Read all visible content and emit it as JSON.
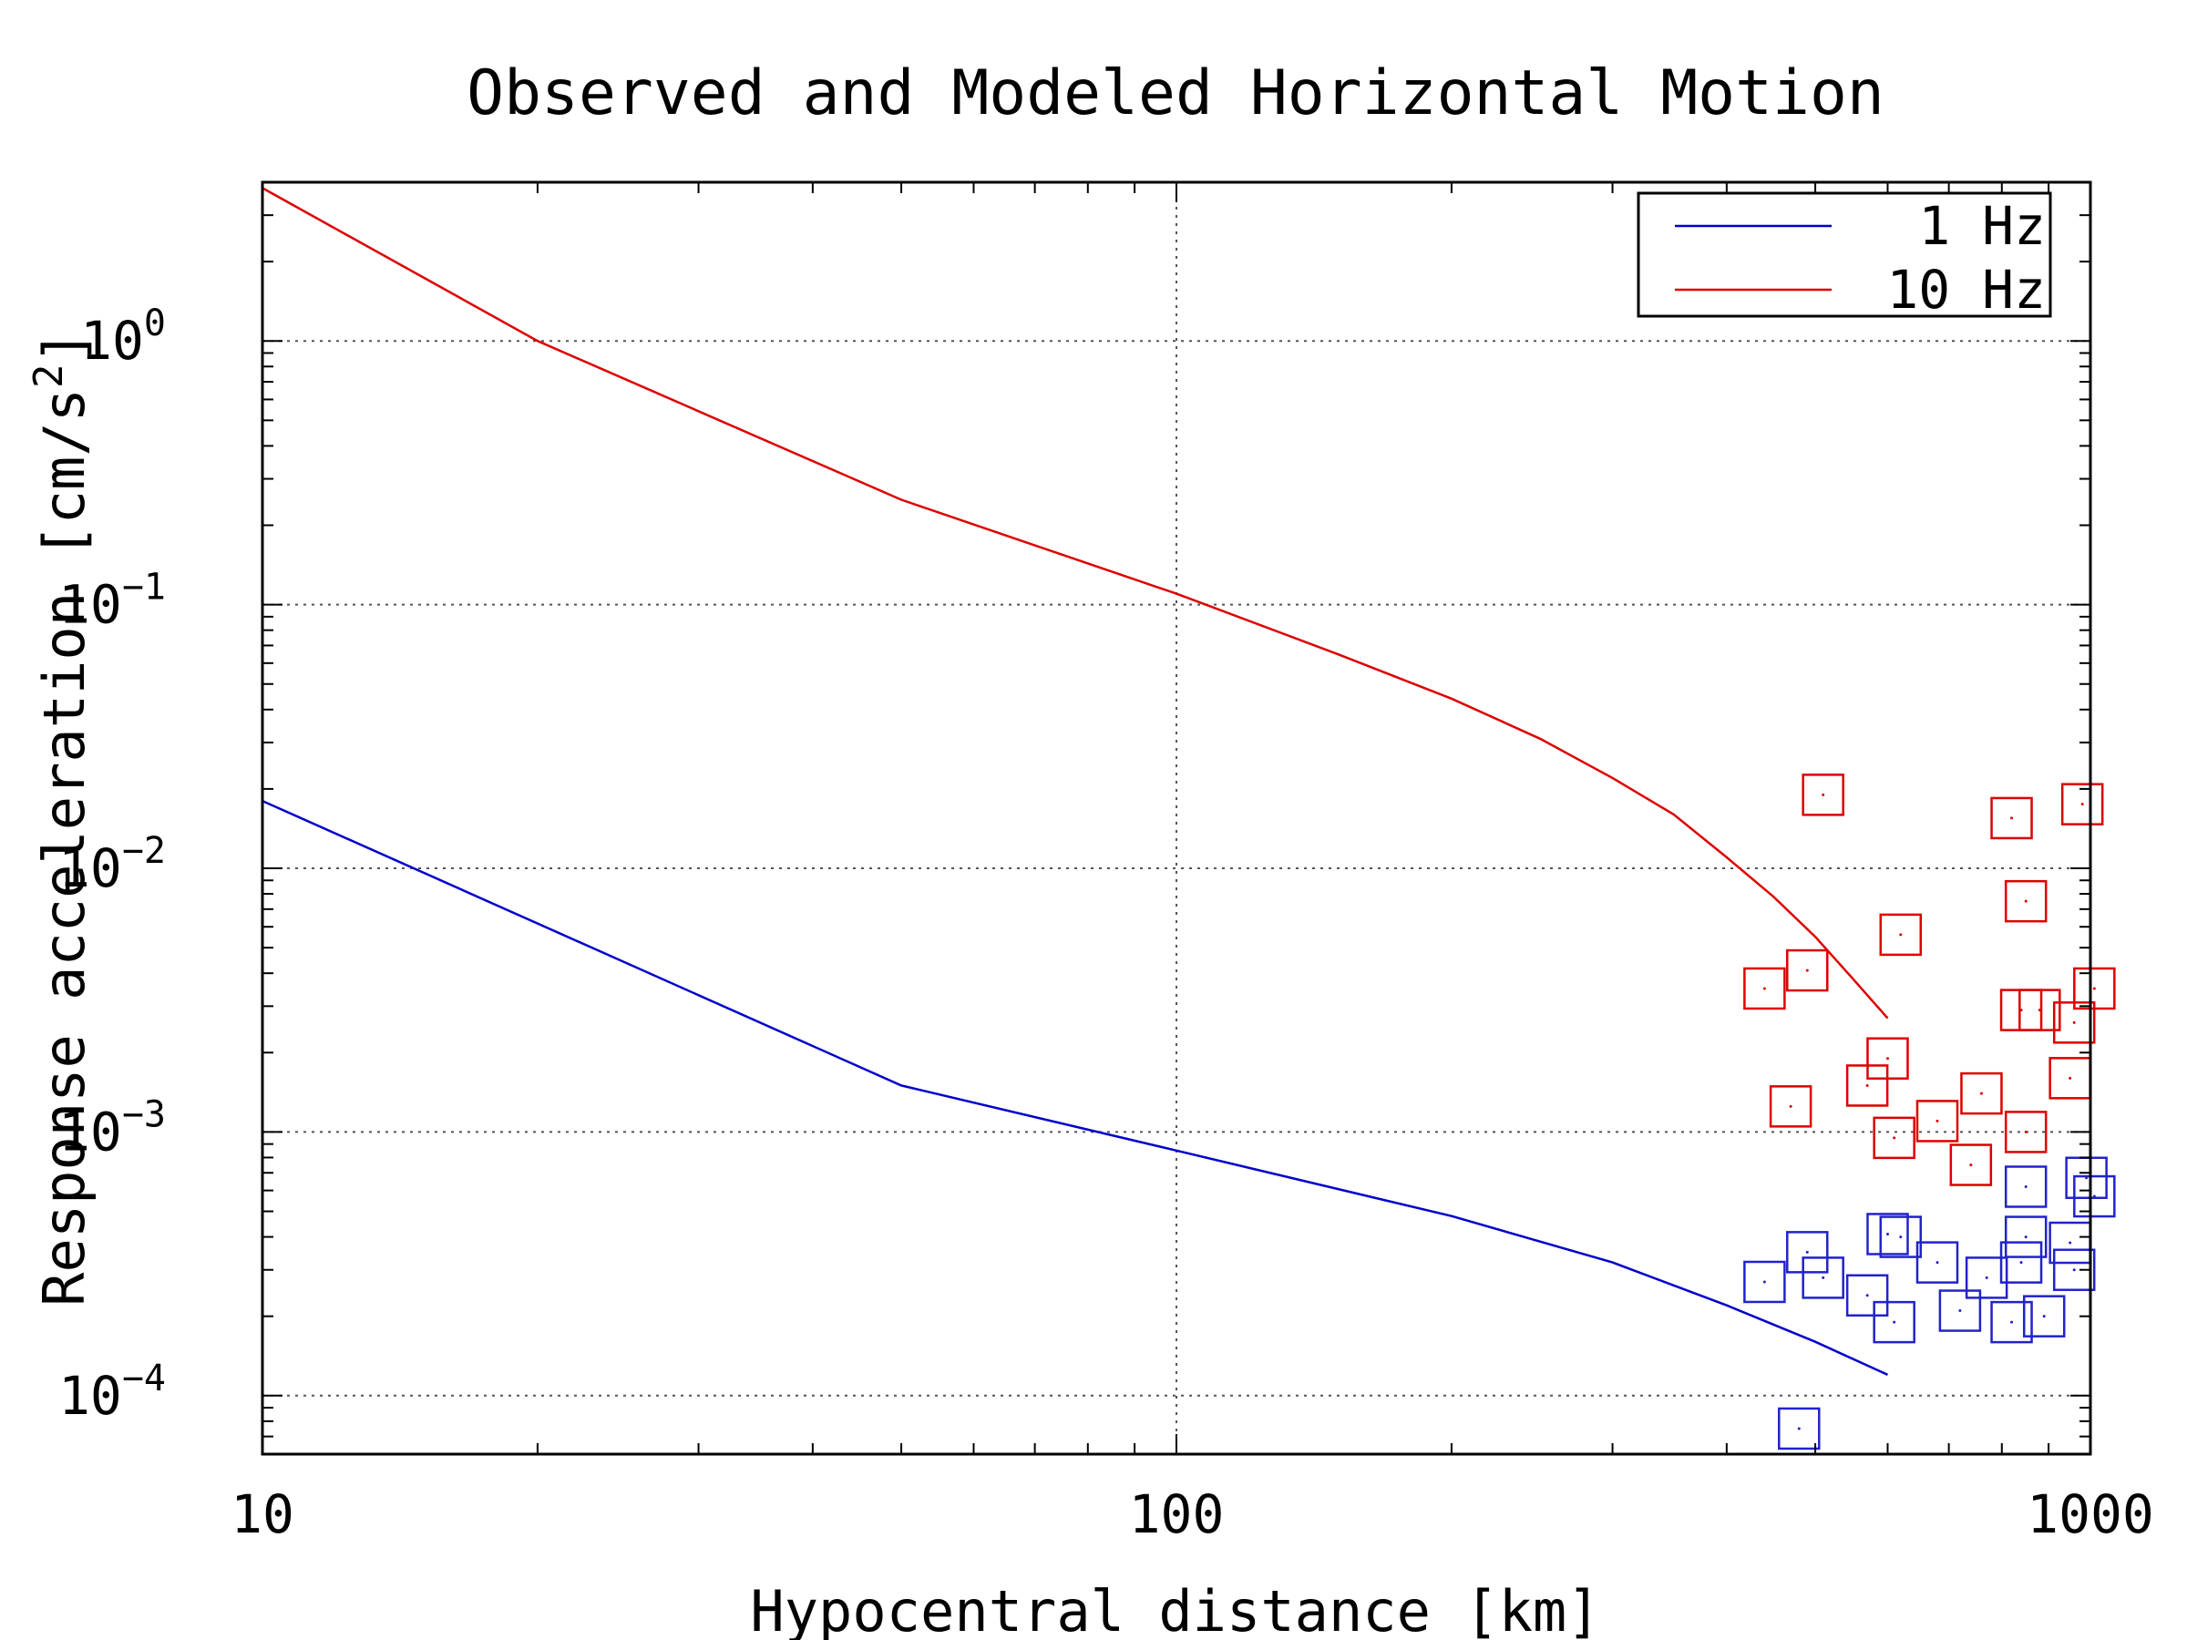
{
  "chart_data": {
    "type": "scatter",
    "title": "Observed and Modeled Horizontal Motion",
    "xlabel": "Hypocentral distance [km]",
    "ylabel": "Response acceleration [cm/s",
    "ylabel_sup": "2",
    "ylabel_end": "]",
    "x_scale": "log",
    "y_scale": "log",
    "xlim": [
      10,
      1000
    ],
    "ylim": [
      6e-05,
      4
    ],
    "grid": true,
    "legend_position": "top-right",
    "x_ticks": [
      {
        "value": 10,
        "label": "10"
      },
      {
        "value": 100,
        "label": "100"
      },
      {
        "value": 1000,
        "label": "1000"
      }
    ],
    "y_ticks": [
      {
        "value": 1,
        "base": "10",
        "exp": "0"
      },
      {
        "value": 0.1,
        "base": "10",
        "exp": "−1"
      },
      {
        "value": 0.01,
        "base": "10",
        "exp": "−2"
      },
      {
        "value": 0.001,
        "base": "10",
        "exp": "−3"
      },
      {
        "value": 0.0001,
        "base": "10",
        "exp": "−4"
      }
    ],
    "series": [
      {
        "name": "1 Hz",
        "kind": "line",
        "color": "#0000cc",
        "x": [
          10,
          50,
          100,
          200,
          300,
          400,
          500,
          600
        ],
        "y": [
          0.018,
          0.0015,
          0.00085,
          0.00048,
          0.00032,
          0.00022,
          0.00016,
          0.00012
        ]
      },
      {
        "name": "10 Hz",
        "kind": "line",
        "color": "#dd0000",
        "x": [
          10,
          20,
          50,
          100,
          150,
          200,
          250,
          300,
          350,
          400,
          450,
          500,
          550,
          600
        ],
        "y": [
          3.8,
          1.0,
          0.25,
          0.11,
          0.065,
          0.044,
          0.031,
          0.022,
          0.016,
          0.011,
          0.0078,
          0.0055,
          0.0038,
          0.0027
        ]
      }
    ],
    "observed": [
      {
        "color": "#dd0000",
        "points": [
          [
            510,
            0.019
          ],
          [
            820,
            0.0155
          ],
          [
            980,
            0.0175
          ],
          [
            850,
            0.0075
          ],
          [
            620,
            0.0056
          ],
          [
            440,
            0.0035
          ],
          [
            490,
            0.0041
          ],
          [
            1010,
            0.0035
          ],
          [
            840,
            0.0029
          ],
          [
            880,
            0.0029
          ],
          [
            960,
            0.0026
          ],
          [
            600,
            0.0019
          ],
          [
            470,
            0.00125
          ],
          [
            570,
            0.0015
          ],
          [
            950,
            0.0016
          ],
          [
            760,
            0.0014
          ],
          [
            680,
            0.0011
          ],
          [
            610,
            0.00095
          ],
          [
            850,
            0.001
          ],
          [
            740,
            0.00075
          ]
        ]
      },
      {
        "color": "#2222cc",
        "points": [
          [
            850,
            0.00062
          ],
          [
            990,
            0.00067
          ],
          [
            1010,
            0.00057
          ],
          [
            600,
            0.00041
          ],
          [
            620,
            0.0004
          ],
          [
            490,
            0.00035
          ],
          [
            850,
            0.0004
          ],
          [
            950,
            0.00038
          ],
          [
            680,
            0.00032
          ],
          [
            840,
            0.00032
          ],
          [
            960,
            0.0003
          ],
          [
            440,
            0.00027
          ],
          [
            510,
            0.00028
          ],
          [
            770,
            0.00028
          ],
          [
            570,
            0.00024
          ],
          [
            720,
            0.00021
          ],
          [
            610,
            0.00019
          ],
          [
            820,
            0.00019
          ],
          [
            890,
            0.0002
          ],
          [
            480,
            7.5e-05
          ]
        ]
      }
    ]
  }
}
